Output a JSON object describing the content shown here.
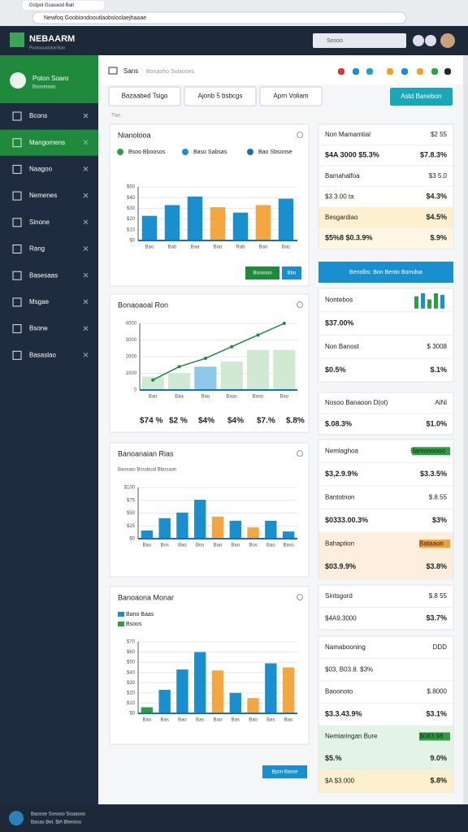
{
  "browser": {
    "tab": "Gstpol Gsasaod Bati",
    "url": "Newfoq Goobiondooutlaobsloolaejhaaae"
  },
  "header": {
    "logo": "NEBAARM",
    "tagline": "Poosoauaodod Bao",
    "search": "Sosoo"
  },
  "sidebar": {
    "profile_name": "Poton Soaro",
    "profile_sub": "Bsosetaao",
    "items": [
      "Bcons",
      "Mangomens",
      "Naagoo",
      "Nemenes",
      "Sinone",
      "Rang",
      "Basesaas",
      "Msgae",
      "Bsone",
      "Basaslao"
    ],
    "active": 1
  },
  "toolbar": {
    "section": "Sans",
    "crumb": "Bonaoho Solaooes",
    "tabs": [
      "Bazaabed Tsigo",
      "Ajonb 5 bsbcgs",
      "Aprn Voliam"
    ],
    "action": "Astd Banebon",
    "filter": "Tias"
  },
  "panels": [
    {
      "title": "Nianolooa",
      "legend": [
        {
          "name": "Bsoo Bboosos",
          "color": "#2e9e44"
        },
        {
          "name": "Baso Sabsas",
          "color": "#1a8fd0"
        },
        {
          "name": "Bao Sbsonse",
          "color": "#1a6fb8"
        }
      ],
      "chart": {
        "type": "bar",
        "categories": [
          "Bao",
          "Bab",
          "Baa",
          "Bao",
          "Rab",
          "Bao",
          "Bas"
        ],
        "values": [
          23,
          33,
          41,
          31,
          26,
          33,
          39
        ],
        "colors": [
          "#1a8fd0",
          "#1a8fd0",
          "#1a8fd0",
          "#f4a640",
          "#1a8fd0",
          "#f4a640",
          "#1a8fd0"
        ],
        "ylim": [
          0,
          50
        ],
        "yticks": [
          {
            "value": 0,
            "label": "$0"
          },
          {
            "value": 10,
            "label": "$10"
          },
          {
            "value": 20,
            "label": "$20"
          },
          {
            "value": 30,
            "label": "$30"
          },
          {
            "value": 40,
            "label": "$40"
          },
          {
            "value": 50,
            "label": "$50"
          }
        ]
      },
      "buttons": [
        {
          "text": "Bsoosoo",
          "color": "#1f8a3c"
        },
        {
          "text": "Bbo",
          "color": "#1a8fd0"
        }
      ]
    },
    {
      "title": "Bonaoaoal Ron",
      "chart": {
        "type": "bar-line",
        "categories": [
          "Bao",
          "Baa",
          "Bao",
          "Baas",
          "Baso",
          "Bao"
        ],
        "bars": {
          "values": [
            800,
            1000,
            1400,
            1700,
            2400,
            2400
          ],
          "colors": [
            "#cfe9d2",
            "#cfe9d2",
            "#8cc8ea",
            "#cfe9d2",
            "#cfe9d2",
            "#cfe9d2"
          ]
        },
        "line": {
          "values": [
            600,
            1400,
            1900,
            2600,
            3300,
            4000
          ],
          "color": "#1f8a3c"
        },
        "ylim": [
          0,
          4000
        ],
        "yticks": [
          0,
          1000,
          2000,
          3000,
          4000
        ]
      },
      "figures": [
        {
          "text": "$74 %",
          "color": "#2e9e44"
        },
        {
          "text": "$2 %",
          "color": "#f0a030"
        },
        {
          "text": "$4%",
          "color": "#2e9e44"
        },
        {
          "text": "$4%",
          "color": "#1a7fc1"
        },
        {
          "text": "$7.%",
          "color": "#1a7fc1"
        },
        {
          "text": "$.8%",
          "color": "#1a7fc1"
        }
      ]
    },
    {
      "title": "Banoanaian Rias",
      "subtitle": "Baosaio Bosdoud Bbosaon",
      "chart": {
        "type": "bar",
        "categories": [
          "Bao",
          "Bos",
          "Bao",
          "Bos",
          "Bao",
          "Bao",
          "Bos",
          "Bao",
          "Bass"
        ],
        "values": [
          16,
          40,
          51,
          76,
          43,
          35,
          22,
          35,
          14
        ],
        "colors": [
          "#1a8fd0",
          "#1a8fd0",
          "#1a8fd0",
          "#1a8fd0",
          "#f4a640",
          "#1a8fd0",
          "#f4a640",
          "#1a8fd0",
          "#1a8fd0"
        ],
        "ylim": [
          0,
          100
        ],
        "yticks": [
          {
            "value": 0,
            "label": "$0"
          },
          {
            "value": 25,
            "label": "$25"
          },
          {
            "value": 50,
            "label": "$50"
          },
          {
            "value": 75,
            "label": "$75"
          },
          {
            "value": 100,
            "label": "$100"
          }
        ]
      }
    },
    {
      "title": "Banoaona Monar",
      "legend": [
        {
          "name": "Bano Baas",
          "color": "#1a8fd0"
        },
        {
          "name": "Bsoos",
          "color": "#2e9e44"
        }
      ],
      "chart": {
        "type": "bar",
        "categories": [
          "Bao",
          "Bas",
          "Bao",
          "Bas",
          "Bao",
          "Bas",
          "Bao",
          "Bas",
          "Bao"
        ],
        "values": [
          6,
          23,
          43,
          60,
          42,
          20,
          15,
          49,
          45
        ],
        "colors": [
          "#2e9e44",
          "#1a8fd0",
          "#1a8fd0",
          "#1a8fd0",
          "#f4a640",
          "#1a8fd0",
          "#f4a640",
          "#1a8fd0",
          "#f4a640"
        ],
        "ylim": [
          0,
          70
        ],
        "yticks": [
          {
            "value": 0,
            "label": "$0"
          },
          {
            "value": 10,
            "label": "$10"
          },
          {
            "value": 20,
            "label": "$20"
          },
          {
            "value": 30,
            "label": "$30"
          },
          {
            "value": 40,
            "label": "$40"
          },
          {
            "value": 50,
            "label": "$50"
          },
          {
            "value": 60,
            "label": "$60"
          },
          {
            "value": 70,
            "label": "$70"
          }
        ]
      }
    }
  ],
  "bottom_button": "Bpcn Basse",
  "cards": [
    {
      "rows": [
        {
          "cells": [
            {
              "text": "Non Mamamtial",
              "color": "#222"
            },
            {
              "text": "$2 55",
              "color": "#888"
            }
          ]
        },
        {
          "cells": [
            {
              "text": "$4A 3000 $5.3%",
              "color": "#2e9e44"
            },
            {
              "text": "$7.8.3%",
              "color": "#f0a030"
            }
          ]
        },
        {
          "cells": [
            {
              "text": "Bamahalfoa",
              "color": "#222"
            },
            {
              "text": "$3 5.0",
              "color": "#888"
            }
          ]
        },
        {
          "cells": [
            {
              "text": "$3.3.00 ta",
              "color": "#666"
            },
            {
              "text": "$4.3%",
              "color": "#d9343a"
            }
          ]
        },
        {
          "bg": "#fdf0cf",
          "cells": [
            {
              "text": "Besgardiao",
              "color": "#222"
            },
            {
              "text": "$4.5%",
              "color": "#d9343a"
            }
          ]
        },
        {
          "bg": "#fff7e4",
          "cells": [
            {
              "text": "$5%8 $0.3.9%",
              "color": "#f0a030"
            },
            {
              "text": "$.9%",
              "color": "#2e9e44"
            }
          ]
        }
      ]
    },
    {
      "button": "Benolbs: Bon Bento Bomdoa",
      "color": "#1a8fd0"
    },
    {
      "rows": [
        {
          "cells": [
            {
              "text": "Nontebos",
              "color": "#222"
            }
          ],
          "spark": {
            "values": [
              8,
              10,
              6,
              10,
              9
            ],
            "colors": [
              "#2e9e44",
              "#1a8fd0",
              "#2e9e44",
              "#2e9e44",
              "#1a8fd0"
            ],
            "ylim": [
              0,
              10
            ]
          }
        },
        {
          "cells": [
            {
              "text": "$37.00%",
              "color": "#1a7fc1"
            }
          ]
        },
        {
          "cells": [
            {
              "text": "Non Banost",
              "color": "#222"
            },
            {
              "text": "$ 3008",
              "color": "#888"
            }
          ]
        },
        {
          "cells": [
            {
              "text": "$0.5%",
              "color": "#f0a030"
            },
            {
              "text": "$.1%",
              "color": "#2e9e44"
            }
          ]
        }
      ]
    },
    {
      "rows": [
        {
          "cells": [
            {
              "text": "Nosoo Banaoon D(ot)",
              "color": "#222"
            },
            {
              "text": "AiNi",
              "color": "#888"
            }
          ]
        },
        {
          "cells": [
            {
              "text": "$.08.3%",
              "color": "#1a7fc1"
            },
            {
              "text": "$1.0%",
              "color": "#2e9e44"
            }
          ]
        }
      ]
    },
    {
      "rows": [
        {
          "cells": [
            {
              "text": "Nemlaghoa",
              "color": "#222"
            },
            {
              "text": "Bamonoooo",
              "color": "#fff",
              "badge": "#2e9e44"
            }
          ]
        },
        {
          "cells": [
            {
              "text": "$3,2.9.9%",
              "color": "#f0a030"
            },
            {
              "text": "$3.3.5%",
              "color": "#f0a030"
            }
          ]
        },
        {
          "cells": [
            {
              "text": "Bantotnon",
              "color": "#222"
            },
            {
              "text": "$.8.55",
              "color": "#888"
            }
          ]
        },
        {
          "cells": [
            {
              "text": "$0333.00.3%",
              "color": "#2e9e44"
            },
            {
              "text": "$3%",
              "color": "#d9343a"
            }
          ]
        },
        {
          "bg": "#fdeedd",
          "cells": [
            {
              "text": "Bahaption",
              "color": "#222"
            },
            {
              "text": "Bataaon",
              "color": "#fff",
              "badge": "#f0a030"
            }
          ]
        },
        {
          "bg": "#fdeedd",
          "cells": [
            {
              "text": "$03.9.9%",
              "color": "#2e9e44"
            },
            {
              "text": "$3.8%",
              "color": "#d9343a"
            }
          ]
        }
      ]
    },
    {
      "rows": [
        {
          "cells": [
            {
              "text": "Sintsgord",
              "color": "#222"
            },
            {
              "text": "$.8 55",
              "color": "#888"
            }
          ]
        },
        {
          "cells": [
            {
              "text": "$4A9.3000",
              "color": "#f0a030"
            },
            {
              "text": "$3.7%",
              "color": "#2e9e44"
            }
          ]
        }
      ]
    },
    {
      "rows": [
        {
          "cells": [
            {
              "text": "Namabooning",
              "color": "#222"
            },
            {
              "text": "DDD",
              "color": "#888"
            }
          ]
        },
        {
          "cells": [
            {
              "text": "$03, B03.8. $3%",
              "color": "#666"
            }
          ]
        },
        {
          "cells": [
            {
              "text": "Baoonoto",
              "color": "#222"
            },
            {
              "text": "$.8000",
              "color": "#888"
            }
          ]
        },
        {
          "cells": [
            {
              "text": "$3.3.43.9%",
              "color": "#f0a030"
            },
            {
              "text": "$3.1%",
              "color": "#2e9e44"
            }
          ]
        },
        {
          "bg": "#e3f3e5",
          "cells": [
            {
              "text": "Nemiaringan Bure",
              "color": "#222"
            },
            {
              "text": "$083.98",
              "color": "#fff",
              "badge": "#2e9e44"
            }
          ]
        },
        {
          "bg": "#e3f3e5",
          "cells": [
            {
              "text": "$5.%",
              "color": "#d9343a"
            },
            {
              "text": "9.0%",
              "color": "#d9343a"
            }
          ]
        },
        {
          "bg": "#fdf0cf",
          "cells": [
            {
              "text": "$A $3.000",
              "color": "#f0a030"
            },
            {
              "text": "$.8%",
              "color": "#2e9e44"
            }
          ]
        }
      ]
    }
  ],
  "footer": {
    "line1": "Baosse Sossoo Soaaoos",
    "line2": "Basas Bel. $lA Bbesloo"
  }
}
